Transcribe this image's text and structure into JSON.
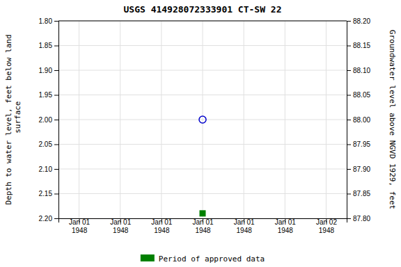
{
  "chart_data": {
    "type": "scatter",
    "title": "USGS 414928072333901  CT-SW    22",
    "y_label": "Depth to water level, feet below land\n surface",
    "y2_label": "Groundwater level above NGVD 1929, feet",
    "categories": [
      "Jan 01\n1948",
      "Jan 01\n1948",
      "Jan 01\n1948",
      "Jan 01\n1948",
      "Jan 01\n1948",
      "Jan 01\n1948",
      "Jan 02\n1948"
    ],
    "series": [
      {
        "color": "#0000cc",
        "marker": "circle-open",
        "values": [
          null,
          null,
          null,
          2.0,
          null,
          null,
          null
        ]
      },
      {
        "name": "Period of approved data",
        "color": "#008000",
        "marker": "square",
        "values": [
          null,
          null,
          null,
          2.19,
          null,
          null,
          null
        ]
      }
    ],
    "ylim": [
      2.2,
      1.8
    ],
    "yticks": [
      {
        "value": 1.8,
        "label": "1.80"
      },
      {
        "value": 1.85,
        "label": "1.85"
      },
      {
        "value": 1.9,
        "label": "1.90"
      },
      {
        "value": 1.95,
        "label": "1.95"
      },
      {
        "value": 2.0,
        "label": "2.00"
      },
      {
        "value": 2.05,
        "label": "2.05"
      },
      {
        "value": 2.1,
        "label": "2.10"
      },
      {
        "value": 2.15,
        "label": "2.15"
      },
      {
        "value": 2.2,
        "label": "2.20"
      }
    ],
    "y2lim": [
      87.8,
      88.2
    ],
    "y2ticks": [
      {
        "value": 88.2,
        "label": "88.20"
      },
      {
        "value": 88.15,
        "label": "88.15"
      },
      {
        "value": 88.1,
        "label": "88.10"
      },
      {
        "value": 88.05,
        "label": "88.05"
      },
      {
        "value": 88.0,
        "label": "88.00"
      },
      {
        "value": 87.95,
        "label": "87.95"
      },
      {
        "value": 87.9,
        "label": "87.90"
      },
      {
        "value": 87.85,
        "label": "87.85"
      },
      {
        "value": 87.8,
        "label": "87.80"
      }
    ],
    "grid": true,
    "legend": "bottom"
  }
}
